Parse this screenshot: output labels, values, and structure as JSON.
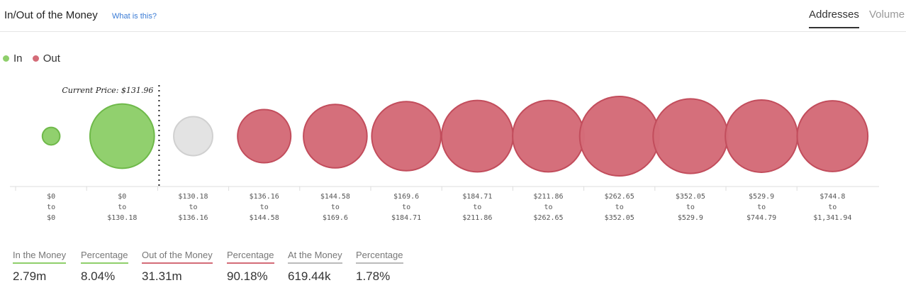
{
  "header": {
    "title": "In/Out of the Money",
    "help_link": "What is this?",
    "tabs": [
      {
        "label": "Addresses",
        "active": true
      },
      {
        "label": "Volume",
        "active": false
      }
    ]
  },
  "legend": [
    {
      "label": "In",
      "color": "#8fcf6b"
    },
    {
      "label": "Out",
      "color": "#d46c78"
    }
  ],
  "colors": {
    "in_fill": "#8fcf6b",
    "in_stroke": "#6fb94a",
    "out_fill": "#d46c78",
    "out_stroke": "#c24d5c",
    "at_fill": "#e2e2e2",
    "at_stroke": "#d0d0d0",
    "in_underline": "#8fcf6b",
    "out_underline": "#d46c78",
    "at_underline": "#bbbbbb"
  },
  "chart_data": {
    "type": "bubble",
    "current_price_label": "Current Price: $131.96",
    "bins": [
      {
        "from": "$0",
        "to": "$0",
        "status": "in",
        "relative_size": 0.22
      },
      {
        "from": "$0",
        "to": "$130.18",
        "status": "in",
        "relative_size": 0.81
      },
      {
        "from": "$130.18",
        "to": "$136.16",
        "status": "at",
        "relative_size": 0.49
      },
      {
        "from": "$136.16",
        "to": "$144.58",
        "status": "out",
        "relative_size": 0.67
      },
      {
        "from": "$144.58",
        "to": "$169.6",
        "status": "out",
        "relative_size": 0.8
      },
      {
        "from": "$169.6",
        "to": "$184.71",
        "status": "out",
        "relative_size": 0.87
      },
      {
        "from": "$184.71",
        "to": "$211.86",
        "status": "out",
        "relative_size": 0.9
      },
      {
        "from": "$211.86",
        "to": "$262.65",
        "status": "out",
        "relative_size": 0.9
      },
      {
        "from": "$262.65",
        "to": "$352.05",
        "status": "out",
        "relative_size": 1.0
      },
      {
        "from": "$352.05",
        "to": "$529.9",
        "status": "out",
        "relative_size": 0.94
      },
      {
        "from": "$529.9",
        "to": "$744.79",
        "status": "out",
        "relative_size": 0.91
      },
      {
        "from": "$744.8",
        "to": "$1,341.94",
        "status": "out",
        "relative_size": 0.89
      }
    ],
    "to_word": "to"
  },
  "summary": [
    {
      "label": "In the Money",
      "value": "2.79m",
      "kind": "in"
    },
    {
      "label": "Percentage",
      "value": "8.04%",
      "kind": "in"
    },
    {
      "label": "Out of the Money",
      "value": "31.31m",
      "kind": "out"
    },
    {
      "label": "Percentage",
      "value": "90.18%",
      "kind": "out"
    },
    {
      "label": "At the Money",
      "value": "619.44k",
      "kind": "at"
    },
    {
      "label": "Percentage",
      "value": "1.78%",
      "kind": "at"
    }
  ]
}
